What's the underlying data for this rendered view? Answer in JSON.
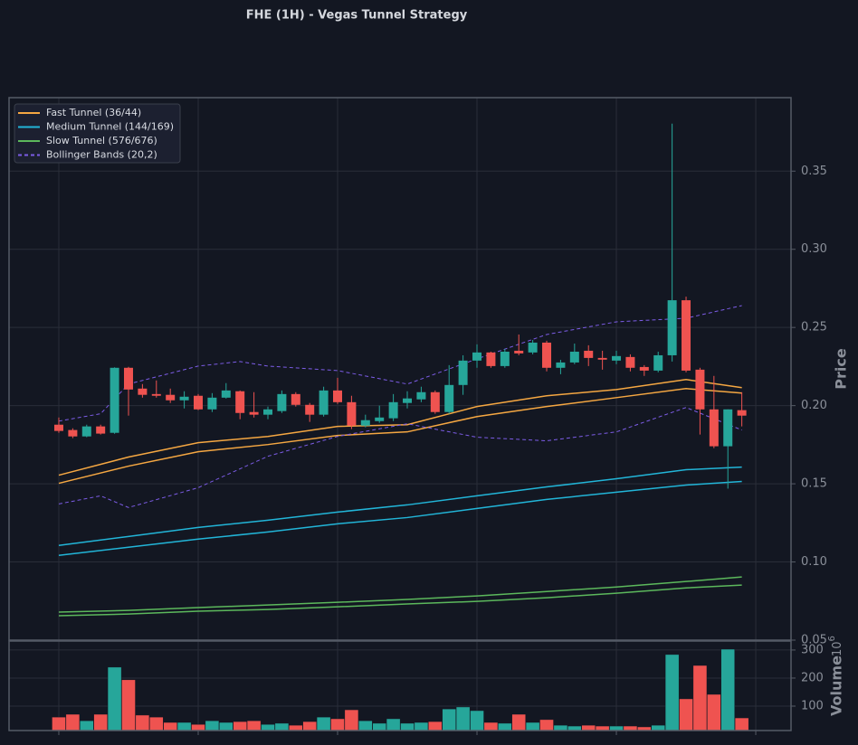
{
  "chart_data": [
    {
      "type": "candlestick",
      "title": "FHE (1H) - Vegas Tunnel Strategy",
      "ylabel": "Price",
      "x": [
        0,
        1,
        2,
        3,
        4,
        5,
        6,
        7,
        8,
        9,
        10,
        11,
        12,
        13,
        14,
        15,
        16,
        17,
        18,
        19,
        20,
        21,
        22,
        23,
        24,
        25,
        26,
        27,
        28,
        29,
        30,
        31,
        32,
        33,
        34,
        35,
        36,
        37,
        38,
        39,
        40,
        41,
        42,
        43,
        44,
        45,
        46,
        47,
        48,
        49
      ],
      "open": [
        0.1878,
        0.1844,
        0.1803,
        0.1867,
        0.1826,
        0.2242,
        0.2109,
        0.2074,
        0.2069,
        0.2034,
        0.2063,
        0.1976,
        0.2051,
        0.2092,
        0.1959,
        0.1942,
        0.1965,
        0.2074,
        0.2005,
        0.1942,
        0.2097,
        0.2022,
        0.1872,
        0.1901,
        0.1919,
        0.2017,
        0.204,
        0.2086,
        0.1959,
        0.2132,
        0.2288,
        0.234,
        0.2253,
        0.2351,
        0.234,
        0.2403,
        0.2242,
        0.2276,
        0.2351,
        0.2305,
        0.2288,
        0.2311,
        0.2247,
        0.2224,
        0.2322,
        0.2674,
        0.223,
        0.1976,
        0.174,
        0.1971
      ],
      "high": [
        0.1924,
        0.1855,
        0.1878,
        0.1878,
        0.2245,
        0.2248,
        0.2138,
        0.2161,
        0.2109,
        0.2092,
        0.2074,
        0.208,
        0.2144,
        0.2097,
        0.2086,
        0.1994,
        0.2097,
        0.2086,
        0.2017,
        0.2121,
        0.2178,
        0.2063,
        0.1942,
        0.2,
        0.2074,
        0.2092,
        0.2121,
        0.2097,
        0.2259,
        0.2322,
        0.2392,
        0.2345,
        0.2363,
        0.2455,
        0.242,
        0.2415,
        0.2293,
        0.2397,
        0.2386,
        0.2351,
        0.2351,
        0.2328,
        0.2259,
        0.2345,
        0.3804,
        0.2697,
        0.2242,
        0.219,
        0.1976,
        0.2086
      ],
      "low": [
        0.1826,
        0.1792,
        0.1798,
        0.1815,
        0.182,
        0.1936,
        0.2051,
        0.2051,
        0.2017,
        0.1982,
        0.1971,
        0.1959,
        0.2045,
        0.1913,
        0.1924,
        0.1913,
        0.1953,
        0.1994,
        0.1896,
        0.193,
        0.2011,
        0.185,
        0.1861,
        0.189,
        0.1901,
        0.1982,
        0.2022,
        0.1948,
        0.1948,
        0.2069,
        0.2242,
        0.2242,
        0.2242,
        0.2322,
        0.2328,
        0.2219,
        0.2201,
        0.2265,
        0.2253,
        0.223,
        0.2265,
        0.2219,
        0.219,
        0.2213,
        0.2282,
        0.2213,
        0.1815,
        0.1728,
        0.1469,
        0.1867
      ],
      "close": [
        0.1838,
        0.1803,
        0.1867,
        0.1821,
        0.2242,
        0.2103,
        0.2069,
        0.2063,
        0.2034,
        0.2057,
        0.1976,
        0.2051,
        0.2097,
        0.1953,
        0.1942,
        0.1976,
        0.2074,
        0.2005,
        0.1942,
        0.2097,
        0.2022,
        0.1872,
        0.1907,
        0.1924,
        0.2022,
        0.2046,
        0.2086,
        0.1959,
        0.2132,
        0.2288,
        0.234,
        0.2253,
        0.2345,
        0.2334,
        0.2403,
        0.2242,
        0.2276,
        0.2345,
        0.2305,
        0.2294,
        0.2317,
        0.2242,
        0.2224,
        0.2322,
        0.2674,
        0.2224,
        0.1976,
        0.174,
        0.1976,
        0.1936
      ],
      "up_color": "#26a69a",
      "down_color": "#ef5350",
      "series": [
        {
          "name": "Fast Tunnel (36/44)",
          "color": "#f5a742",
          "dashed": false,
          "lines": [
            {
              "x": [
                0,
                5,
                10,
                15,
                20,
                25,
                30,
                35,
                40,
                45,
                49
              ],
              "values": [
                0.1555,
                0.1671,
                0.1763,
                0.1803,
                0.1867,
                0.1878,
                0.1994,
                0.2063,
                0.2103,
                0.2167,
                0.2115
              ]
            },
            {
              "x": [
                0,
                5,
                10,
                15,
                20,
                25,
                30,
                35,
                40,
                45,
                49
              ],
              "values": [
                0.1503,
                0.1613,
                0.1705,
                0.1751,
                0.1809,
                0.1832,
                0.193,
                0.1994,
                0.2051,
                0.2109,
                0.208
              ]
            }
          ]
        },
        {
          "name": "Medium Tunnel (144/169)",
          "color": "#22b5d8",
          "dashed": false,
          "lines": [
            {
              "x": [
                0,
                5,
                10,
                15,
                20,
                25,
                30,
                35,
                40,
                45,
                49
              ],
              "values": [
                0.1106,
                0.1163,
                0.1221,
                0.1267,
                0.1319,
                0.1365,
                0.1423,
                0.148,
                0.1532,
                0.159,
                0.1607
              ]
            },
            {
              "x": [
                0,
                5,
                10,
                15,
                20,
                25,
                30,
                35,
                40,
                45,
                49
              ],
              "values": [
                0.1042,
                0.1094,
                0.1146,
                0.1192,
                0.1244,
                0.1284,
                0.1342,
                0.14,
                0.1446,
                0.1492,
                0.1515
              ]
            }
          ]
        },
        {
          "name": "Slow Tunnel (576/676)",
          "color": "#5cb85c",
          "dashed": false,
          "lines": [
            {
              "x": [
                0,
                5,
                10,
                15,
                20,
                25,
                30,
                35,
                40,
                45,
                49
              ],
              "values": [
                0.0679,
                0.069,
                0.0708,
                0.0725,
                0.0742,
                0.076,
                0.0783,
                0.0811,
                0.084,
                0.0875,
                0.0904
              ]
            },
            {
              "x": [
                0,
                5,
                10,
                15,
                20,
                25,
                30,
                35,
                40,
                45,
                49
              ],
              "values": [
                0.0656,
                0.0667,
                0.0685,
                0.0696,
                0.0713,
                0.0731,
                0.0748,
                0.0771,
                0.08,
                0.0834,
                0.0852
              ]
            }
          ]
        },
        {
          "name": "Bollinger Bands (20,2)",
          "color": "#7c5ce6",
          "dashed": true,
          "lines": [
            {
              "x": [
                0,
                3,
                5,
                10,
                13,
                15,
                20,
                25,
                30,
                35,
                40,
                45,
                49
              ],
              "values": [
                0.1901,
                0.1948,
                0.2138,
                0.2253,
                0.2282,
                0.2253,
                0.2224,
                0.2138,
                0.2299,
                0.2455,
                0.2536,
                0.2559,
                0.264
              ]
            },
            {
              "x": [
                0,
                3,
                5,
                10,
                15,
                20,
                25,
                30,
                35,
                40,
                45,
                49
              ],
              "values": [
                0.1371,
                0.1423,
                0.1348,
                0.1475,
                0.1676,
                0.1803,
                0.1884,
                0.1798,
                0.1775,
                0.1832,
                0.1988,
                0.1844
              ]
            }
          ]
        }
      ],
      "xlim": [
        -3.57,
        52.53
      ],
      "xticks": [
        0,
        10,
        20,
        30,
        40,
        50
      ],
      "ylim": [
        0.05,
        0.397
      ],
      "yticks": [
        0.05,
        {
          "value": 0.1,
          "label": "0.10"
        },
        0.15,
        {
          "value": 0.2,
          "label": "0.20"
        },
        0.25,
        {
          "value": 0.3,
          "label": "0.30"
        },
        0.35
      ],
      "grid": true,
      "legend": "upper left"
    },
    {
      "type": "bar",
      "ylabel": "Volume",
      "offset_label": {
        "base": "10",
        "exponent": "6"
      },
      "x": [
        0,
        1,
        2,
        3,
        4,
        5,
        6,
        7,
        8,
        9,
        10,
        11,
        12,
        13,
        14,
        15,
        16,
        17,
        18,
        19,
        20,
        21,
        22,
        23,
        24,
        25,
        26,
        27,
        28,
        29,
        30,
        31,
        32,
        33,
        34,
        35,
        36,
        37,
        38,
        39,
        40,
        41,
        42,
        43,
        44,
        45,
        46,
        47,
        48,
        49
      ],
      "values": [
        61,
        71,
        48,
        71,
        239,
        194,
        68,
        61,
        42,
        42,
        35,
        48,
        42,
        45,
        48,
        35,
        39,
        32,
        45,
        61,
        55,
        87,
        48,
        39,
        55,
        39,
        42,
        45,
        90,
        97,
        84,
        42,
        39,
        71,
        42,
        52,
        32,
        29,
        32,
        29,
        29,
        29,
        26,
        32,
        284,
        126,
        245,
        142,
        303,
        58
      ],
      "xlim": [
        -3.57,
        52.53
      ],
      "xticks": [
        0,
        10,
        20,
        30,
        40,
        50
      ],
      "ylim": [
        13,
        332
      ],
      "yticks": [
        100,
        200,
        300
      ],
      "grid": true
    }
  ]
}
